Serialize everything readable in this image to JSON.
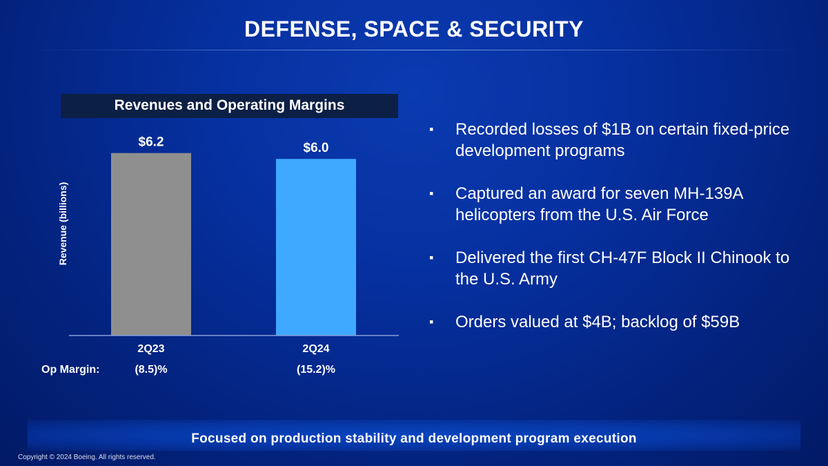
{
  "slide": {
    "title": "DEFENSE, SPACE & SECURITY",
    "banner": "Focused on production stability and development program execution",
    "copyright": "Copyright © 2024 Boeing. All rights reserved."
  },
  "bullets": [
    "Recorded losses of $1B on certain fixed-price development programs",
    "Captured an award for seven MH-139A helicopters from the U.S. Air Force",
    "Delivered the first CH-47F Block II Chinook to the U.S. Army",
    "Orders valued at $4B; backlog of $59B"
  ],
  "chart_data": {
    "type": "bar",
    "title": "Revenues and Operating Margins",
    "ylabel": "Revenue (billions)",
    "xlabel": "",
    "categories": [
      "2Q23",
      "2Q24"
    ],
    "values": [
      6.2,
      6.0
    ],
    "data_labels": [
      "$6.2",
      "$6.0"
    ],
    "colors": [
      "#8f8f8f",
      "#3fa9ff"
    ],
    "ylim": [
      0,
      7.6
    ],
    "grid": false,
    "op_margin": {
      "label": "Op Margin:",
      "values": [
        "(8.5)%",
        "(15.2)%"
      ]
    }
  }
}
